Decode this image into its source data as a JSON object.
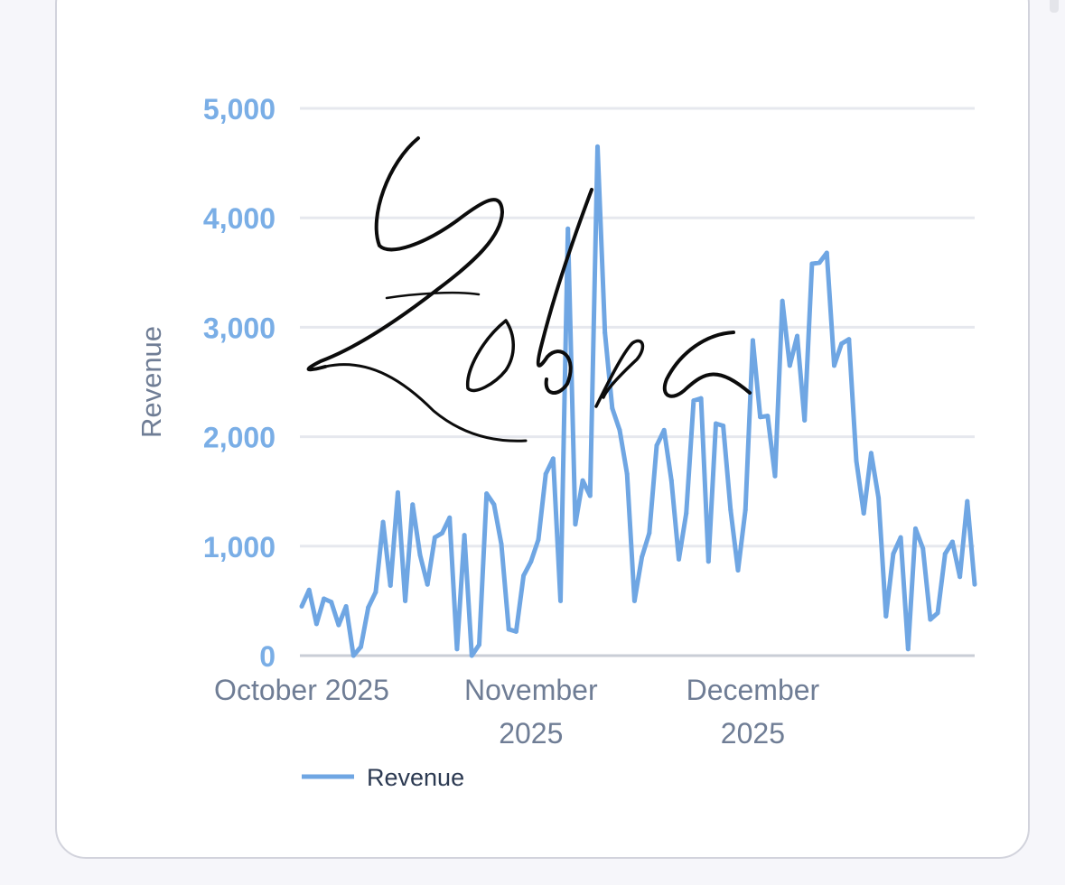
{
  "chart_data": {
    "type": "line",
    "title": "",
    "xlabel": "",
    "ylabel": "Revenue",
    "ylim": [
      0,
      5000
    ],
    "yticks": [
      "0",
      "1,000",
      "2,000",
      "3,000",
      "4,000",
      "5,000"
    ],
    "yticks_values": [
      0,
      1000,
      2000,
      3000,
      4000,
      5000
    ],
    "xticks": [
      {
        "label_lines": [
          "October 2025"
        ],
        "day_index": 0
      },
      {
        "label_lines": [
          "November",
          "2025"
        ],
        "day_index": 31
      },
      {
        "label_lines": [
          "December",
          "2025"
        ],
        "day_index": 61
      }
    ],
    "grid": true,
    "legend": "bottom-left",
    "series": [
      {
        "name": "Revenue",
        "color": "#6fa6e3",
        "start_date": "2025-10-01",
        "values": [
          450,
          600,
          290,
          520,
          490,
          280,
          450,
          0,
          80,
          440,
          580,
          1220,
          640,
          1490,
          500,
          1380,
          920,
          650,
          1080,
          1120,
          1260,
          60,
          1100,
          0,
          100,
          1480,
          1380,
          1020,
          240,
          220,
          730,
          860,
          1060,
          1660,
          1800,
          500,
          3900,
          1200,
          1600,
          1460,
          4650,
          2950,
          2260,
          2060,
          1660,
          500,
          900,
          1120,
          1920,
          2060,
          1600,
          880,
          1300,
          2330,
          2350,
          860,
          2120,
          2100,
          1330,
          780,
          1330,
          2880,
          2180,
          2190,
          1640,
          3240,
          2650,
          2920,
          2150,
          3580,
          3590,
          3680,
          2650,
          2850,
          2890,
          1780,
          1300,
          1850,
          1440,
          360,
          930,
          1080,
          60,
          1160,
          980,
          330,
          390,
          930,
          1040,
          720,
          1410,
          650
        ]
      }
    ]
  },
  "watermark": {
    "kind": "handwritten-signature",
    "text": "Zebra",
    "color": "#0c0c0c"
  }
}
